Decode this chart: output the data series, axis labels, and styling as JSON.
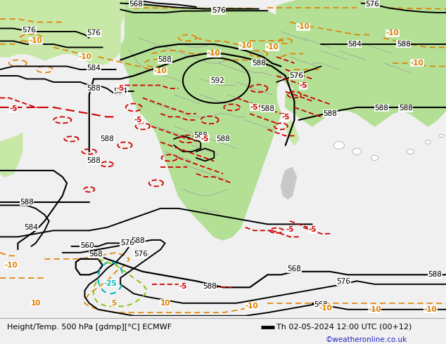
{
  "title_left": "Height/Temp. 500 hPa [gdmp][°C] ECMWF",
  "title_right": "Th 02-05-2024 12:00 UTC (00+12)",
  "watermark": "©weatheronline.co.uk",
  "bg_ocean": "#c8c8c8",
  "bg_land_gray": "#d8d8d8",
  "land_green": "#b4e096",
  "land_green2": "#c8e8a8",
  "fig_width": 6.34,
  "fig_height": 4.9,
  "dpi": 100,
  "col_black": "#000000",
  "col_orange": "#e08000",
  "col_red": "#cc0000",
  "col_teal": "#00b8b8",
  "col_green_dash": "#80c000"
}
